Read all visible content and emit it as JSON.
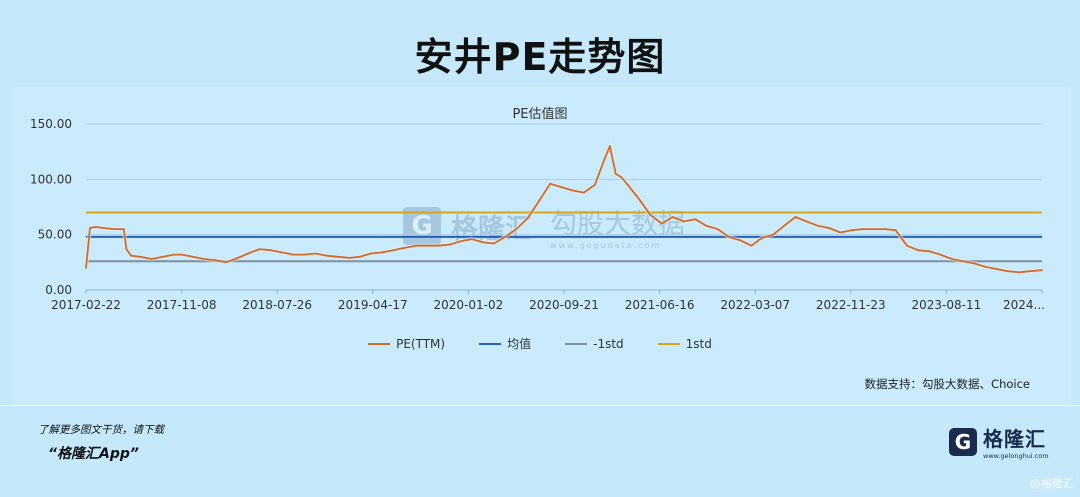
{
  "header": {
    "title": "安井PE走势图"
  },
  "chart_data": {
    "type": "line",
    "title": "PE估值图",
    "ylim": [
      0,
      150
    ],
    "y_ticks": [
      "0.00",
      "50.00",
      "100.00",
      "150.00"
    ],
    "x_ticks": [
      "2017-02-22",
      "2017-11-08",
      "2018-07-26",
      "2019-04-17",
      "2020-01-02",
      "2020-09-21",
      "2021-06-16",
      "2022-03-07",
      "2022-11-23",
      "2023-08-11",
      "2024..."
    ],
    "x_start": "2017-02-22",
    "x_end": "2024-04-12",
    "grid": true,
    "legend_position": "bottom",
    "series": [
      {
        "name": "PE(TTM)",
        "color": "#d26a28",
        "values": [
          [
            "2017-02-22",
            20
          ],
          [
            "2017-03-05",
            56
          ],
          [
            "2017-03-20",
            57
          ],
          [
            "2017-04-10",
            56
          ],
          [
            "2017-05-10",
            55
          ],
          [
            "2017-06-05",
            55
          ],
          [
            "2017-06-12",
            37
          ],
          [
            "2017-06-25",
            31
          ],
          [
            "2017-07-20",
            30
          ],
          [
            "2017-08-20",
            28
          ],
          [
            "2017-09-20",
            30
          ],
          [
            "2017-10-20",
            32
          ],
          [
            "2017-11-10",
            32
          ],
          [
            "2017-12-10",
            30
          ],
          [
            "2018-01-10",
            28
          ],
          [
            "2018-02-10",
            27
          ],
          [
            "2018-03-10",
            25
          ],
          [
            "2018-04-05",
            28
          ],
          [
            "2018-05-10",
            33
          ],
          [
            "2018-06-10",
            37
          ],
          [
            "2018-07-10",
            36
          ],
          [
            "2018-08-10",
            34
          ],
          [
            "2018-09-10",
            32
          ],
          [
            "2018-10-10",
            32
          ],
          [
            "2018-11-10",
            33
          ],
          [
            "2018-12-10",
            31
          ],
          [
            "2019-01-10",
            30
          ],
          [
            "2019-02-10",
            29
          ],
          [
            "2019-03-10",
            30
          ],
          [
            "2019-04-10",
            33
          ],
          [
            "2019-05-10",
            34
          ],
          [
            "2019-06-10",
            36
          ],
          [
            "2019-07-10",
            38
          ],
          [
            "2019-08-10",
            40
          ],
          [
            "2019-09-10",
            40
          ],
          [
            "2019-10-10",
            40
          ],
          [
            "2019-11-10",
            41
          ],
          [
            "2019-12-10",
            44
          ],
          [
            "2020-01-10",
            46
          ],
          [
            "2020-02-10",
            43
          ],
          [
            "2020-03-10",
            42
          ],
          [
            "2020-04-10",
            48
          ],
          [
            "2020-05-10",
            55
          ],
          [
            "2020-06-10",
            65
          ],
          [
            "2020-07-10",
            80
          ],
          [
            "2020-08-10",
            96
          ],
          [
            "2020-09-10",
            93
          ],
          [
            "2020-10-10",
            90
          ],
          [
            "2020-11-10",
            88
          ],
          [
            "2020-12-10",
            95
          ],
          [
            "2021-01-05",
            118
          ],
          [
            "2021-01-20",
            130
          ],
          [
            "2021-02-05",
            105
          ],
          [
            "2021-02-20",
            102
          ],
          [
            "2021-03-10",
            95
          ],
          [
            "2021-04-10",
            82
          ],
          [
            "2021-05-10",
            68
          ],
          [
            "2021-06-10",
            60
          ],
          [
            "2021-07-10",
            66
          ],
          [
            "2021-08-10",
            62
          ],
          [
            "2021-09-10",
            64
          ],
          [
            "2021-10-10",
            58
          ],
          [
            "2021-11-10",
            55
          ],
          [
            "2021-12-10",
            48
          ],
          [
            "2022-01-10",
            45
          ],
          [
            "2022-02-10",
            40
          ],
          [
            "2022-03-10",
            47
          ],
          [
            "2022-04-10",
            50
          ],
          [
            "2022-05-10",
            58
          ],
          [
            "2022-06-10",
            66
          ],
          [
            "2022-07-10",
            62
          ],
          [
            "2022-08-10",
            58
          ],
          [
            "2022-09-10",
            56
          ],
          [
            "2022-10-10",
            52
          ],
          [
            "2022-11-10",
            54
          ],
          [
            "2022-12-10",
            55
          ],
          [
            "2023-01-10",
            55
          ],
          [
            "2023-02-10",
            55
          ],
          [
            "2023-03-10",
            54
          ],
          [
            "2023-04-10",
            40
          ],
          [
            "2023-05-10",
            36
          ],
          [
            "2023-06-10",
            35
          ],
          [
            "2023-07-10",
            32
          ],
          [
            "2023-08-10",
            28
          ],
          [
            "2023-09-10",
            26
          ],
          [
            "2023-10-10",
            24
          ],
          [
            "2023-11-10",
            21
          ],
          [
            "2023-12-10",
            19
          ],
          [
            "2024-01-10",
            17
          ],
          [
            "2024-02-10",
            16
          ],
          [
            "2024-03-10",
            17
          ],
          [
            "2024-04-12",
            18
          ]
        ]
      },
      {
        "name": "均值",
        "color": "#2a5fb8",
        "value": 48
      },
      {
        "name": "-1std",
        "color": "#7f8fa0",
        "value": 26
      },
      {
        "name": "1std",
        "color": "#d9a514",
        "value": 70
      }
    ]
  },
  "watermark": {
    "mark": "G",
    "name": "格隆汇",
    "right_big": "勾股大数据",
    "right_small": "www.gogudata.com"
  },
  "footer": {
    "source": "数据支持：勾股大数据、Choice",
    "promo_line1": "了解更多图文干货，请下载",
    "promo_line2": "“格隆汇App”",
    "logo_mark": "G",
    "logo_name": "格隆汇",
    "logo_url": "www.gelonghui.com",
    "corner": "@格隆汇"
  }
}
